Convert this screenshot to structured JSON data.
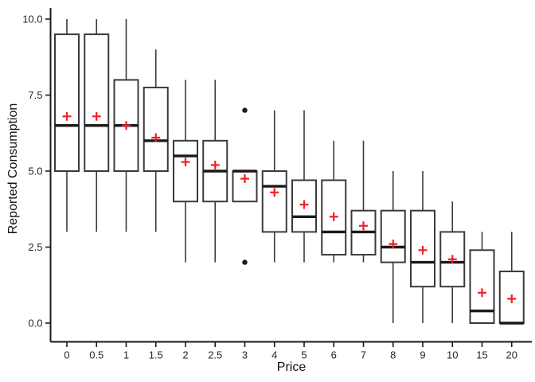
{
  "chart_data": {
    "type": "boxplot",
    "title": "",
    "xlabel": "Price",
    "ylabel": "Reported Consumption",
    "ylim": [
      0,
      10
    ],
    "grid": false,
    "legend": null,
    "y_ticks": [
      {
        "value": 0,
        "label": "0.0"
      },
      {
        "value": 2.5,
        "label": "2.5"
      },
      {
        "value": 5,
        "label": "5.0"
      },
      {
        "value": 7.5,
        "label": "7.5"
      },
      {
        "value": 10,
        "label": "10.0"
      }
    ],
    "categories": [
      "0",
      "0.5",
      "1",
      "1.5",
      "2",
      "2.5",
      "3",
      "4",
      "5",
      "6",
      "7",
      "8",
      "9",
      "10",
      "15",
      "20"
    ],
    "mean_marker": "red-plus",
    "boxes": [
      {
        "price": "0",
        "min": 3,
        "q1": 5,
        "median": 6.5,
        "q3": 9.5,
        "max": 10,
        "mean": 6.8,
        "outliers": []
      },
      {
        "price": "0.5",
        "min": 3,
        "q1": 5,
        "median": 6.5,
        "q3": 9.5,
        "max": 10,
        "mean": 6.8,
        "outliers": []
      },
      {
        "price": "1",
        "min": 3,
        "q1": 5,
        "median": 6.5,
        "q3": 8,
        "max": 10,
        "mean": 6.5,
        "outliers": []
      },
      {
        "price": "1.5",
        "min": 3,
        "q1": 5,
        "median": 6,
        "q3": 7.75,
        "max": 9,
        "mean": 6.1,
        "outliers": []
      },
      {
        "price": "2",
        "min": 2,
        "q1": 4,
        "median": 5.5,
        "q3": 6,
        "max": 8,
        "mean": 5.3,
        "outliers": []
      },
      {
        "price": "2.5",
        "min": 2,
        "q1": 4,
        "median": 5,
        "q3": 6,
        "max": 8,
        "mean": 5.2,
        "outliers": []
      },
      {
        "price": "3",
        "min": 4,
        "q1": 4,
        "median": 5,
        "q3": 5,
        "max": 5,
        "mean": 4.75,
        "outliers": [
          7,
          2
        ]
      },
      {
        "price": "4",
        "min": 2,
        "q1": 3,
        "median": 4.5,
        "q3": 5,
        "max": 7,
        "mean": 4.3,
        "outliers": []
      },
      {
        "price": "5",
        "min": 2,
        "q1": 3,
        "median": 3.5,
        "q3": 4.7,
        "max": 7,
        "mean": 3.9,
        "outliers": []
      },
      {
        "price": "6",
        "min": 2,
        "q1": 2.25,
        "median": 3,
        "q3": 4.7,
        "max": 6,
        "mean": 3.5,
        "outliers": []
      },
      {
        "price": "7",
        "min": 2,
        "q1": 2.25,
        "median": 3,
        "q3": 3.7,
        "max": 6,
        "mean": 3.2,
        "outliers": []
      },
      {
        "price": "8",
        "min": 0,
        "q1": 2,
        "median": 2.5,
        "q3": 3.7,
        "max": 5,
        "mean": 2.6,
        "outliers": []
      },
      {
        "price": "9",
        "min": 0,
        "q1": 1.2,
        "median": 2,
        "q3": 3.7,
        "max": 5,
        "mean": 2.4,
        "outliers": []
      },
      {
        "price": "10",
        "min": 0,
        "q1": 1.2,
        "median": 2,
        "q3": 3,
        "max": 4,
        "mean": 2.1,
        "outliers": []
      },
      {
        "price": "15",
        "min": 0,
        "q1": 0,
        "median": 0.4,
        "q3": 2.4,
        "max": 3,
        "mean": 1.0,
        "outliers": []
      },
      {
        "price": "20",
        "min": 0,
        "q1": 0,
        "median": 0,
        "q3": 1.7,
        "max": 3,
        "mean": 0.8,
        "outliers": []
      }
    ],
    "colors": {
      "box_stroke": "#3a3a3a",
      "box_fill": "#ffffff",
      "median": "#1a1a1a",
      "whisker": "#3a3a3a",
      "mean_marker": "#ed2024",
      "outlier": "#1a1a1a",
      "axis_line": "#1a1a1a",
      "tick_label": "#262626",
      "background": "#ffffff"
    }
  }
}
